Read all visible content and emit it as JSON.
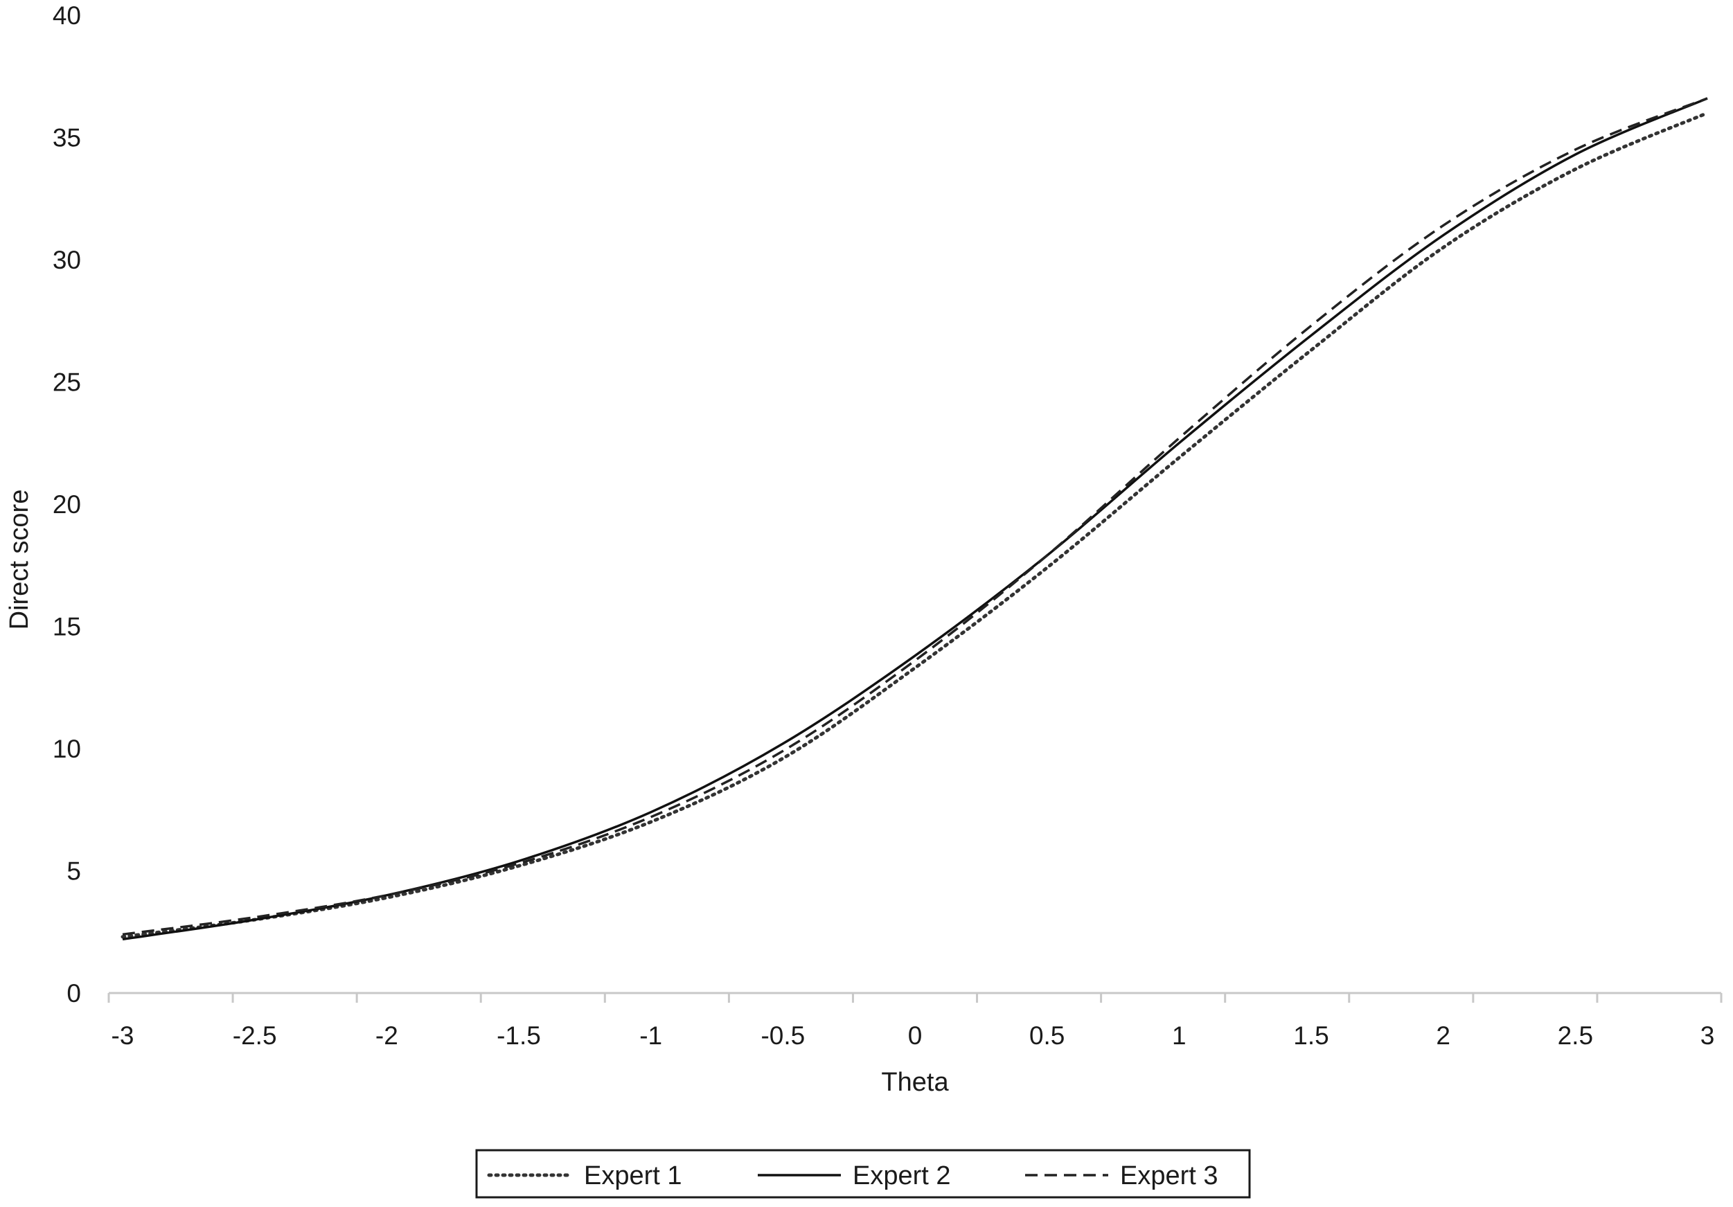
{
  "chart_data": {
    "type": "line",
    "title": "",
    "xlabel": "Theta",
    "ylabel": "Direct score",
    "xlim": [
      -3,
      3
    ],
    "ylim": [
      0,
      40
    ],
    "x_ticks": [
      "-3",
      "-2.5",
      "-2",
      "-1.5",
      "-1",
      "-0.5",
      "0",
      "0.5",
      "1",
      "1.5",
      "2",
      "2.5",
      "3"
    ],
    "y_ticks": [
      "0",
      "5",
      "10",
      "15",
      "20",
      "25",
      "30",
      "35",
      "40"
    ],
    "grid": false,
    "legend_position": "bottom",
    "x": [
      -3,
      -2.5,
      -2,
      -1.5,
      -1,
      -0.5,
      0,
      0.5,
      1,
      1.5,
      2,
      2.5,
      3
    ],
    "series": [
      {
        "name": "Expert 1",
        "style": "dotted",
        "color": "#333333",
        "values": [
          2.3,
          3.0,
          3.9,
          5.2,
          7.0,
          9.6,
          13.3,
          17.4,
          21.9,
          26.3,
          30.5,
          33.7,
          36.0
        ]
      },
      {
        "name": "Expert 2",
        "style": "solid",
        "color": "#111111",
        "values": [
          2.2,
          3.0,
          4.0,
          5.4,
          7.4,
          10.2,
          13.8,
          17.9,
          22.5,
          26.9,
          31.0,
          34.3,
          36.6
        ]
      },
      {
        "name": "Expert 3",
        "style": "dashed",
        "color": "#222222",
        "values": [
          2.4,
          3.1,
          4.0,
          5.3,
          7.2,
          9.9,
          13.6,
          17.9,
          22.7,
          27.3,
          31.4,
          34.5,
          36.6
        ]
      }
    ]
  }
}
